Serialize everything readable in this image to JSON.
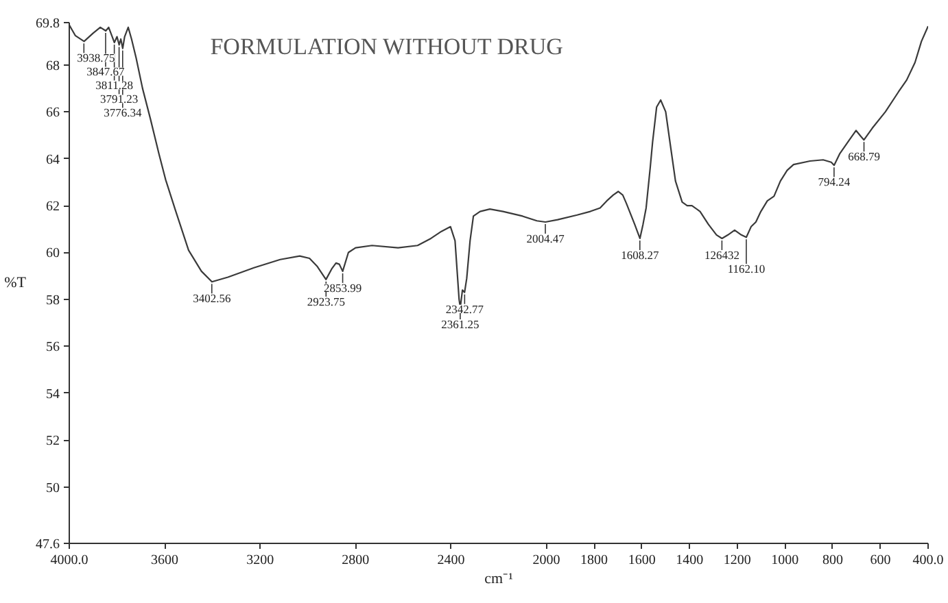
{
  "chart_data": {
    "type": "line",
    "title": "FORMULATION WITHOUT DRUG",
    "xlabel": "cm⁻¹",
    "ylabel": "%T",
    "x": [
      4000,
      3975,
      3938,
      3900,
      3870,
      3847,
      3835,
      3820,
      3811,
      3800,
      3791,
      3784,
      3776,
      3768,
      3753,
      3739,
      3720,
      3693,
      3660,
      3624,
      3596,
      3555,
      3500,
      3446,
      3402,
      3335,
      3226,
      3116,
      3034,
      2993,
      2960,
      2924,
      2900,
      2882,
      2868,
      2854,
      2830,
      2800,
      2731,
      2622,
      2540,
      2484,
      2440,
      2402,
      2383,
      2366,
      2361,
      2352,
      2343,
      2334,
      2320,
      2306,
      2278,
      2237,
      2182,
      2100,
      2040,
      2004,
      1953,
      1871,
      1816,
      1775,
      1747,
      1720,
      1699,
      1680,
      1665,
      1630,
      1608,
      1595,
      1582,
      1565,
      1555,
      1538,
      1521,
      1500,
      1480,
      1459,
      1431,
      1410,
      1390,
      1356,
      1321,
      1287,
      1264,
      1239,
      1211,
      1183,
      1162,
      1142,
      1122,
      1101,
      1074,
      1046,
      1019,
      991,
      964,
      895,
      840,
      806,
      794,
      771,
      730,
      702,
      682,
      669,
      634,
      579,
      524,
      490,
      455,
      428,
      400
    ],
    "series": [
      {
        "color": "#3a3a3a",
        "values": [
          69.7,
          69.25,
          69.0,
          69.35,
          69.6,
          69.45,
          69.6,
          69.2,
          68.95,
          69.2,
          68.85,
          69.1,
          68.7,
          69.2,
          69.6,
          69.1,
          68.3,
          67.0,
          65.7,
          64.2,
          63.1,
          61.8,
          60.1,
          59.2,
          58.75,
          58.95,
          59.35,
          59.7,
          59.85,
          59.75,
          59.4,
          58.85,
          59.3,
          59.55,
          59.5,
          59.2,
          60.0,
          60.2,
          60.3,
          60.2,
          60.3,
          60.6,
          60.9,
          61.1,
          60.5,
          58.0,
          57.65,
          58.4,
          58.3,
          58.9,
          60.5,
          61.55,
          61.75,
          61.85,
          61.75,
          61.55,
          61.35,
          61.3,
          61.4,
          61.6,
          61.75,
          61.9,
          62.2,
          62.45,
          62.6,
          62.45,
          62.1,
          61.2,
          60.6,
          61.2,
          61.9,
          63.6,
          64.7,
          66.2,
          66.5,
          66.0,
          64.55,
          63.05,
          62.15,
          62.0,
          62.0,
          61.75,
          61.2,
          60.75,
          60.6,
          60.75,
          60.95,
          60.75,
          60.65,
          61.1,
          61.3,
          61.75,
          62.2,
          62.4,
          63.05,
          63.5,
          63.75,
          63.9,
          63.95,
          63.85,
          63.72,
          64.2,
          64.8,
          65.2,
          64.95,
          64.8,
          65.3,
          66.0,
          66.85,
          67.35,
          68.1,
          69.0,
          69.65
        ]
      }
    ],
    "xlim": [
      4000,
      400
    ],
    "ylim": [
      47.6,
      69.8
    ],
    "xticks": [
      {
        "value": 4000,
        "label": "4000.0"
      },
      3600,
      3200,
      2800,
      2400,
      2000,
      1800,
      1600,
      1400,
      1200,
      1000,
      800,
      600,
      {
        "value": 400,
        "label": "400.0"
      }
    ],
    "yticks": [
      47.6,
      50,
      52,
      54,
      56,
      58,
      60,
      62,
      64,
      66,
      68,
      69.8
    ],
    "grid": false,
    "marker": "none",
    "line_style": "solid",
    "annotations": [
      {
        "text": "3938.75",
        "x": 3938.75,
        "y": 69.0
      },
      {
        "text": "3847.67",
        "x": 3847.67,
        "y": 69.45
      },
      {
        "text": "3811.28",
        "x": 3811.28,
        "y": 68.95
      },
      {
        "text": "3791.23",
        "x": 3791.23,
        "y": 68.85
      },
      {
        "text": "3776.34",
        "x": 3776.34,
        "y": 68.7
      },
      {
        "text": "3402.56",
        "x": 3402.56,
        "y": 58.75
      },
      {
        "text": "2853.99",
        "x": 2853.99,
        "y": 59.2
      },
      {
        "text": "2923.75",
        "x": 2923.75,
        "y": 58.85
      },
      {
        "text": "2342.77",
        "x": 2342.77,
        "y": 58.3
      },
      {
        "text": "2361.25",
        "x": 2361.25,
        "y": 57.65
      },
      {
        "text": "2004.47",
        "x": 2004.47,
        "y": 61.3
      },
      {
        "text": "1608.27",
        "x": 1608.27,
        "y": 60.6
      },
      {
        "text": "126432",
        "x": 1264.32,
        "y": 60.6
      },
      {
        "text": "1162.10",
        "x": 1162.1,
        "y": 60.65
      },
      {
        "text": "794.24",
        "x": 794.24,
        "y": 63.72
      },
      {
        "text": "668.79",
        "x": 668.79,
        "y": 64.8
      }
    ]
  }
}
